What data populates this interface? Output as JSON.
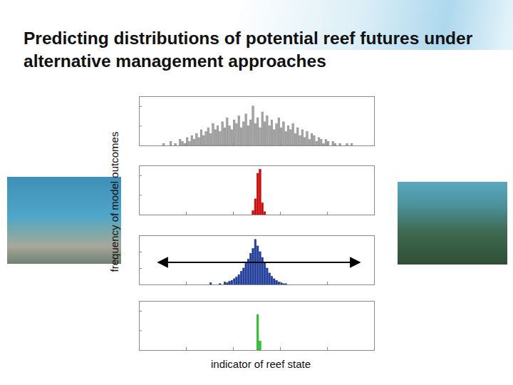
{
  "title": "Predicting distributions of potential reef futures under alternative management approaches",
  "x_label": "indicator of reef state",
  "y_label": "frequency of model outcomes",
  "chart_data": [
    {
      "type": "histogram",
      "color": "#a6a6a6",
      "bins": [
        10,
        11,
        12,
        13,
        14,
        15,
        16,
        17,
        18,
        19,
        20,
        21,
        22,
        23,
        24,
        25,
        26,
        27,
        28,
        29,
        30,
        31,
        32,
        33,
        34,
        35,
        36,
        37,
        38,
        39,
        40,
        41,
        42,
        43,
        44,
        45,
        46,
        47,
        48,
        49,
        50,
        51,
        52,
        53,
        54,
        55,
        56,
        57,
        58,
        59,
        60,
        61,
        62,
        63,
        64,
        65,
        66,
        67,
        68,
        69,
        70,
        71,
        72,
        73,
        74,
        75,
        76,
        77,
        78,
        79,
        80,
        81,
        82,
        83,
        84,
        85,
        86,
        87,
        88,
        89,
        90,
        91
      ],
      "counts": [
        1,
        0,
        0,
        2,
        0,
        1,
        0,
        3,
        2,
        1,
        4,
        2,
        5,
        3,
        6,
        4,
        8,
        5,
        7,
        9,
        6,
        11,
        8,
        10,
        7,
        12,
        9,
        14,
        10,
        8,
        13,
        11,
        15,
        9,
        12,
        16,
        10,
        13,
        20,
        11,
        14,
        9,
        17,
        12,
        15,
        10,
        13,
        8,
        11,
        14,
        9,
        12,
        7,
        10,
        8,
        11,
        6,
        9,
        5,
        8,
        4,
        7,
        3,
        6,
        5,
        2,
        4,
        3,
        1,
        3,
        2,
        0,
        2,
        1,
        0,
        1,
        0,
        0,
        1,
        0,
        1
      ],
      "xlim": [
        0,
        100
      ],
      "ylim": [
        0,
        25
      ],
      "xticks": [
        20,
        40,
        60,
        80
      ],
      "yticks": [
        10,
        20
      ],
      "tick_labels": false
    },
    {
      "type": "histogram",
      "color": "#e00000",
      "bins": [
        48,
        49,
        50,
        51,
        52,
        53,
        54
      ],
      "counts": [
        20,
        80,
        210,
        230,
        60,
        15
      ],
      "xlim": [
        0,
        100
      ],
      "ylim": [
        0,
        250
      ],
      "xticks": [
        20,
        40,
        60,
        80
      ],
      "yticks": [
        100,
        200
      ],
      "tick_labels": false
    },
    {
      "type": "histogram",
      "color": "#1f3fa8",
      "bins": [
        30,
        31,
        32,
        33,
        34,
        35,
        36,
        37,
        38,
        39,
        40,
        41,
        42,
        43,
        44,
        45,
        46,
        47,
        48,
        49,
        50,
        51,
        52,
        53,
        54,
        55,
        56,
        57,
        58,
        59,
        60,
        61,
        62,
        63
      ],
      "counts": [
        2,
        0,
        0,
        0,
        1,
        0,
        3,
        2,
        4,
        5,
        7,
        9,
        12,
        16,
        20,
        26,
        31,
        38,
        44,
        55,
        47,
        40,
        33,
        27,
        20,
        14,
        10,
        7,
        5,
        3,
        2,
        1,
        1
      ],
      "xlim": [
        0,
        100
      ],
      "ylim": [
        0,
        60
      ],
      "xticks": [
        20,
        40,
        60,
        80
      ],
      "yticks": [
        20,
        40
      ],
      "tick_labels": false
    },
    {
      "type": "histogram",
      "color": "#22cc22",
      "bins": [
        50,
        51,
        52
      ],
      "counts": [
        360,
        90
      ],
      "xlim": [
        0,
        100
      ],
      "ylim": [
        0,
        500
      ],
      "xticks": [
        20,
        40,
        60,
        80
      ],
      "yticks": [
        200,
        400
      ],
      "tick_labels": false
    }
  ]
}
